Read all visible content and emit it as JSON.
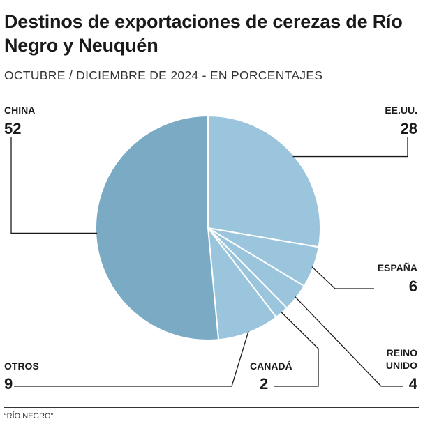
{
  "title": "Destinos de exportaciones de cerezas de Río Negro y Neuquén",
  "subtitle": "OCTUBRE / DICIEMBRE DE 2024 - EN PORCENTAJES",
  "source": "“RÍO NEGRO”",
  "colors": {
    "slice_dark": "#7aaac4",
    "slice_light": "#9bc5dc",
    "slice_border": "#ffffff",
    "leader": "#1a1a1a"
  },
  "chart_data": {
    "type": "pie",
    "categories": [
      "EE.UU.",
      "ESPAÑA",
      "REINO UNIDO",
      "CANADÁ",
      "OTROS",
      "CHINA"
    ],
    "values": [
      28,
      6,
      4,
      2,
      9,
      52
    ],
    "labels": [
      {
        "name": "EE.UU.",
        "value": "28"
      },
      {
        "name": "ESPAÑA",
        "value": "6"
      },
      {
        "name": "REINO UNIDO",
        "name_lines": [
          "REINO",
          "UNIDO"
        ],
        "value": "4"
      },
      {
        "name": "CANADÁ",
        "value": "2"
      },
      {
        "name": "OTROS",
        "value": "9"
      },
      {
        "name": "CHINA",
        "value": "52"
      }
    ],
    "start_angle": "12 o'clock",
    "direction": "clockwise",
    "title": "Destinos de exportaciones de cerezas de Río Negro y Neuquén",
    "subtitle": "OCTUBRE / DICIEMBRE DE 2024 - EN PORCENTAJES"
  }
}
